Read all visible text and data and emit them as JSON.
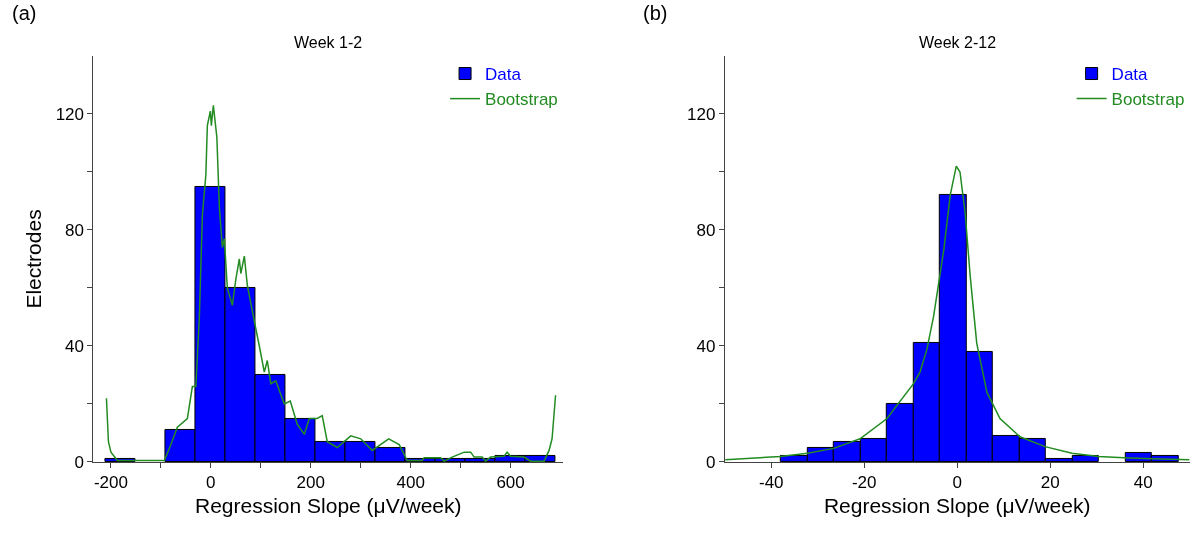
{
  "chart_data": [
    {
      "type": "histogram",
      "title": "Week 1-2",
      "xlabel": "Regression Slope (μV/week)",
      "ylabel": "Electrodes",
      "annotations": [
        "(a)"
      ],
      "bins": [
        -210,
        -150,
        -90,
        -30,
        30,
        90,
        150,
        210,
        270,
        330,
        390,
        450,
        510,
        570,
        630,
        690
      ],
      "series": [
        {
          "name": "Data",
          "color": "#0000ff",
          "values": [
            1,
            0,
            11,
            95,
            60,
            30,
            15,
            7,
            7,
            5,
            1,
            1,
            1,
            2,
            2
          ]
        },
        {
          "name": "Bootstrap",
          "type": "line",
          "color": "#228b22",
          "x": [
            -209,
            -205,
            -200,
            -187,
            -93,
            -80,
            -67,
            -47,
            -37,
            -30,
            -23,
            -17,
            -10,
            -7,
            -1,
            1,
            5,
            12,
            17,
            23,
            27,
            33,
            43,
            50,
            57,
            60,
            67,
            73,
            83,
            90,
            97,
            107,
            113,
            120,
            130,
            147,
            159,
            173,
            187,
            197,
            213,
            223,
            233,
            253,
            280,
            300,
            323,
            356,
            377,
            393,
            423,
            427,
            460,
            467,
            483,
            507,
            520,
            527,
            543,
            550,
            560,
            587,
            593,
            600,
            627,
            640,
            667,
            677,
            683,
            690
          ],
          "values": [
            22,
            7,
            3.4,
            0.5,
            0.5,
            6,
            12,
            15,
            26,
            26,
            50,
            85,
            99,
            116,
            121,
            116,
            123,
            112,
            88,
            74,
            77,
            60,
            54,
            63,
            70,
            65,
            71,
            61,
            52,
            46,
            40,
            31,
            35,
            27,
            28,
            20,
            21,
            13,
            9.5,
            15,
            15,
            16,
            7,
            5,
            9,
            8,
            4,
            8,
            6,
            0.5,
            0.5,
            1.5,
            1.5,
            0.3,
            1.7,
            3.4,
            3.4,
            1.7,
            1.7,
            0.3,
            1.7,
            2,
            3.4,
            2,
            1.7,
            0.3,
            0.3,
            4,
            8,
            23
          ]
        }
      ],
      "xlim": [
        -235,
        705
      ],
      "xticks": [
        -200,
        {
          "value": -100,
          "label": null
        },
        0,
        {
          "value": 100,
          "label": null
        },
        200,
        {
          "value": 300,
          "label": null
        },
        400,
        {
          "value": 500,
          "label": null
        },
        600
      ],
      "ylim": [
        0,
        140
      ],
      "yticks": [
        0,
        {
          "value": 20,
          "label": null
        },
        40,
        {
          "value": 60,
          "label": null
        },
        80,
        {
          "value": 100,
          "label": null
        },
        120
      ],
      "legend": "top right"
    },
    {
      "type": "histogram",
      "title": "Week 2-12",
      "xlabel": "Regression Slope (μV/week)",
      "annotations": [
        "(b)"
      ],
      "bins": [
        -37.9,
        -32.2,
        -26.5,
        -20.8,
        -15.1,
        -9.4,
        -3.7,
        2.0,
        7.7,
        13.4,
        19.1,
        24.8,
        30.5,
        36.2,
        41.9,
        47.6
      ],
      "series": [
        {
          "name": "Data",
          "color": "#0000ff",
          "values": [
            2,
            5,
            7,
            8,
            20,
            41,
            92,
            38,
            9,
            8,
            1,
            2,
            0,
            3,
            2
          ]
        },
        {
          "name": "Bootstrap",
          "type": "line",
          "color": "#228b22",
          "x": [
            -49.9,
            -38,
            -32.2,
            -26.6,
            -20.9,
            -15.1,
            -9.4,
            -8,
            -6.5,
            -5.1,
            -2.9,
            -1.5,
            -0.2,
            0.6,
            1.7,
            2.8,
            4.2,
            6.4,
            9.2,
            13.5,
            18.9,
            24.7,
            30.4,
            35.9,
            42,
            50
          ],
          "values": [
            0.8,
            1.9,
            3,
            4.7,
            8,
            15,
            27,
            31,
            39,
            50,
            73,
            92,
            102,
            100,
            86,
            64,
            41,
            24,
            15,
            8.7,
            5.3,
            3,
            1.9,
            1.5,
            1.1,
            0.8
          ]
        }
      ],
      "xlim": [
        -50,
        50
      ],
      "xticks": [
        -40,
        -20,
        0,
        20,
        40
      ],
      "ylim": [
        0,
        140
      ],
      "yticks": [
        0,
        {
          "value": 20,
          "label": null
        },
        40,
        {
          "value": 60,
          "label": null
        },
        80,
        {
          "value": 100,
          "label": null
        },
        120
      ],
      "legend": "top right"
    }
  ]
}
